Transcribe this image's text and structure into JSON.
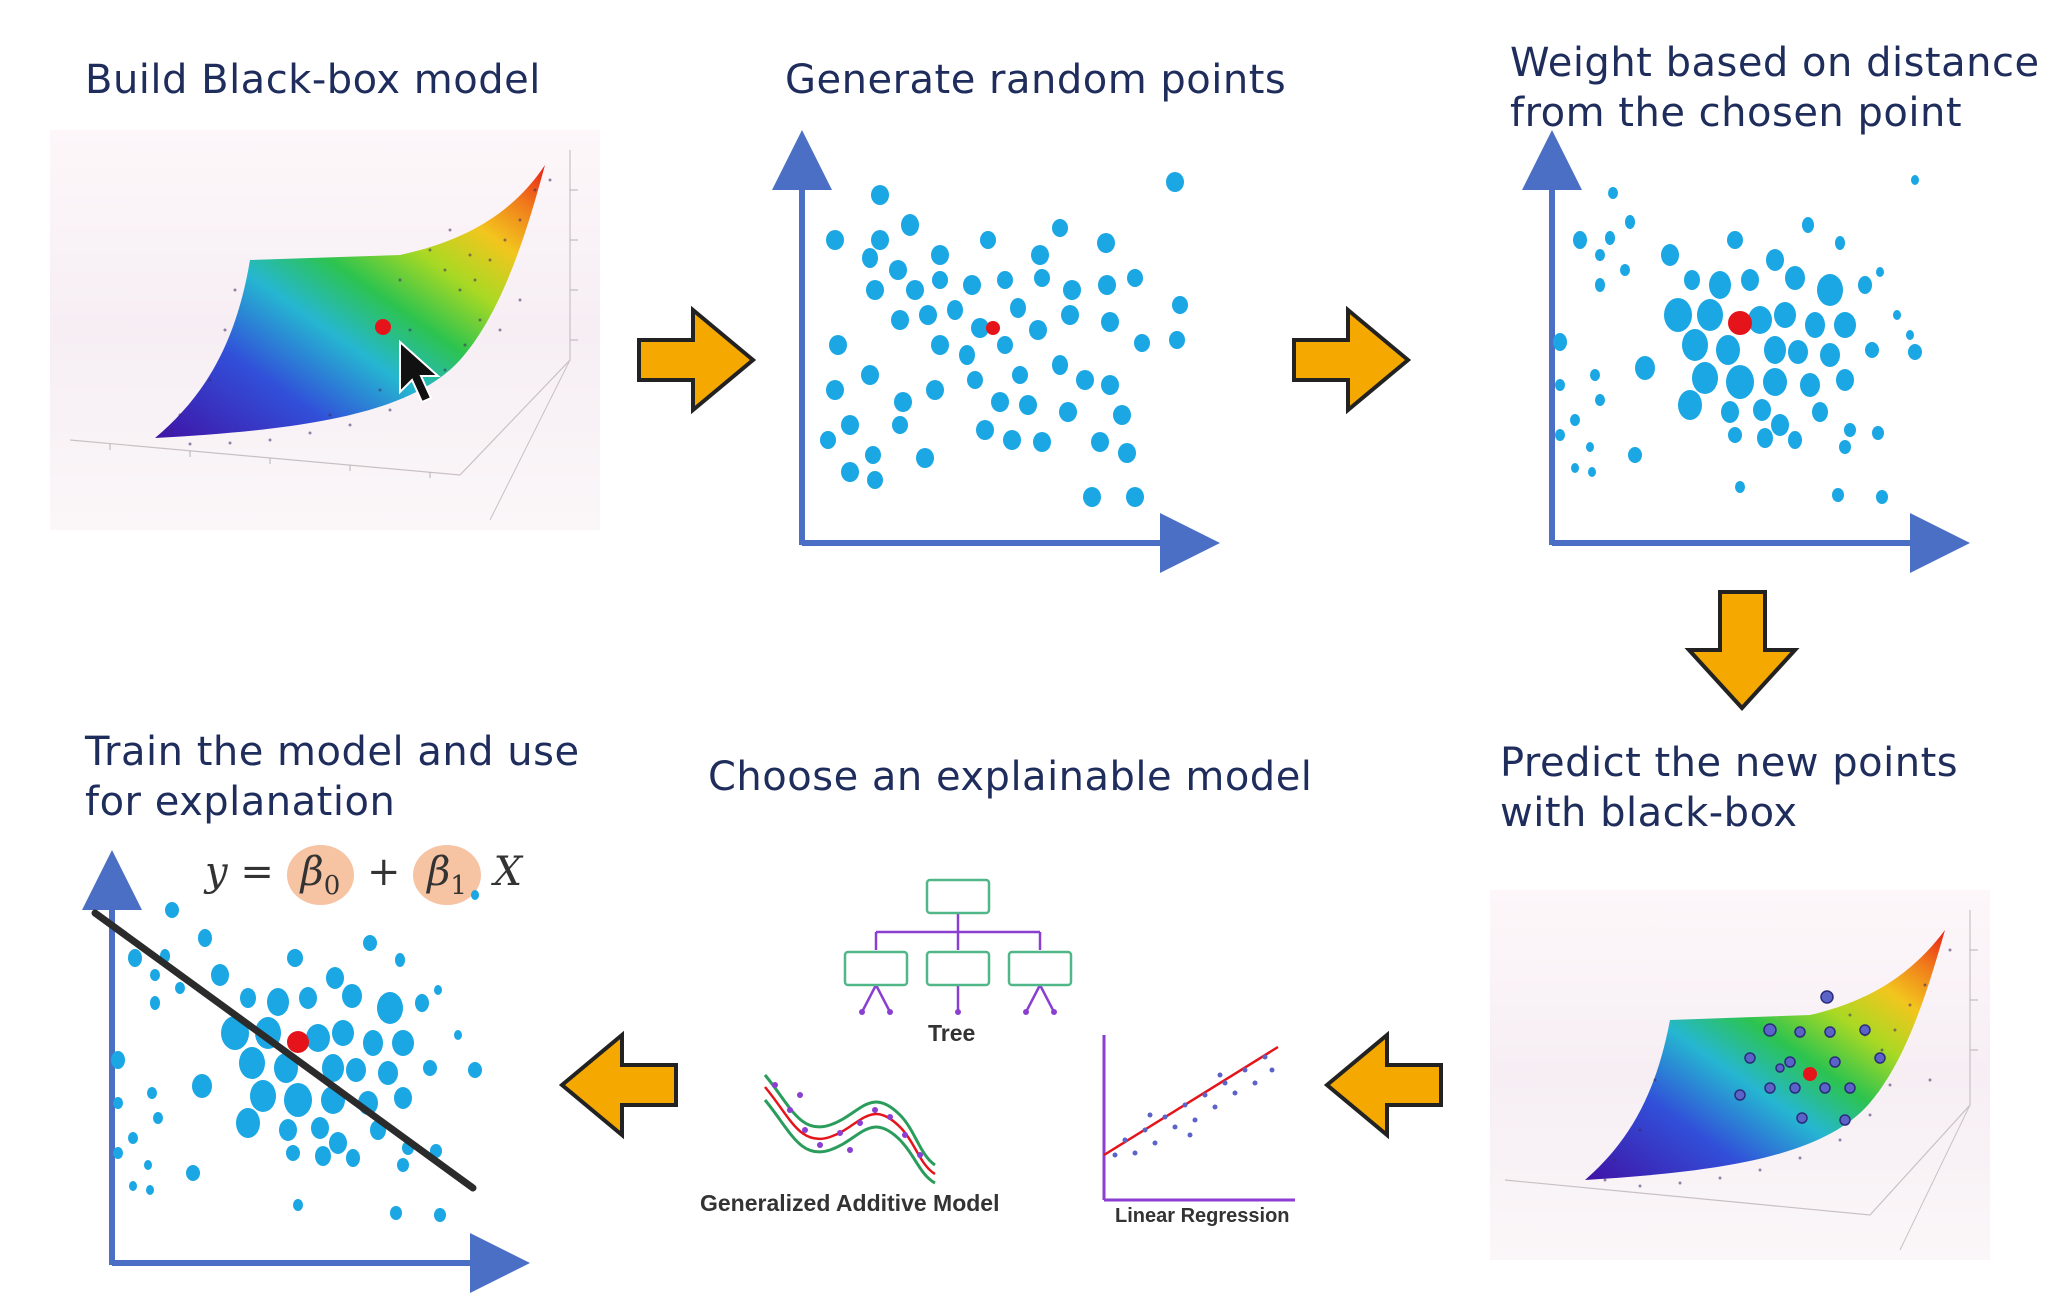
{
  "steps": {
    "build": {
      "title": "Build Black-box model"
    },
    "generate": {
      "title": "Generate random points"
    },
    "weight": {
      "line1": "Weight based on distance",
      "line2": "from the chosen point"
    },
    "predict": {
      "line1": "Predict the new points",
      "line2": "with black-box"
    },
    "choose": {
      "title": "Choose an explainable model",
      "tree_label": "Tree",
      "gam_label": "Generalized Additive Model",
      "linreg_label": "Linear Regression"
    },
    "train": {
      "line1": "Train the model and use",
      "line2": "for explanation",
      "formula_y": "y",
      "formula_eq": "=",
      "formula_b0": "β",
      "formula_b0_sub": "0",
      "formula_plus": "+",
      "formula_b1": "β",
      "formula_b1_sub": "1",
      "formula_x": "X"
    }
  },
  "colors": {
    "title_text": "#1f2d5c",
    "point": "#1aa7e4",
    "chosen_point": "#e5141b",
    "axis": "#4a6fc4",
    "arrow_fill": "#f5a800",
    "arrow_stroke": "#222222",
    "fit_line": "#2b2b2b",
    "coef_highlight": "#f6c3a3",
    "tree_box": "#52b788",
    "tree_link": "#8a3fd1"
  },
  "icons": {
    "flow_arrows": [
      "arrow-right-icon",
      "arrow-right-icon",
      "arrow-down-icon",
      "arrow-left-icon",
      "arrow-left-icon"
    ],
    "cursor": "mouse-pointer-icon"
  }
}
